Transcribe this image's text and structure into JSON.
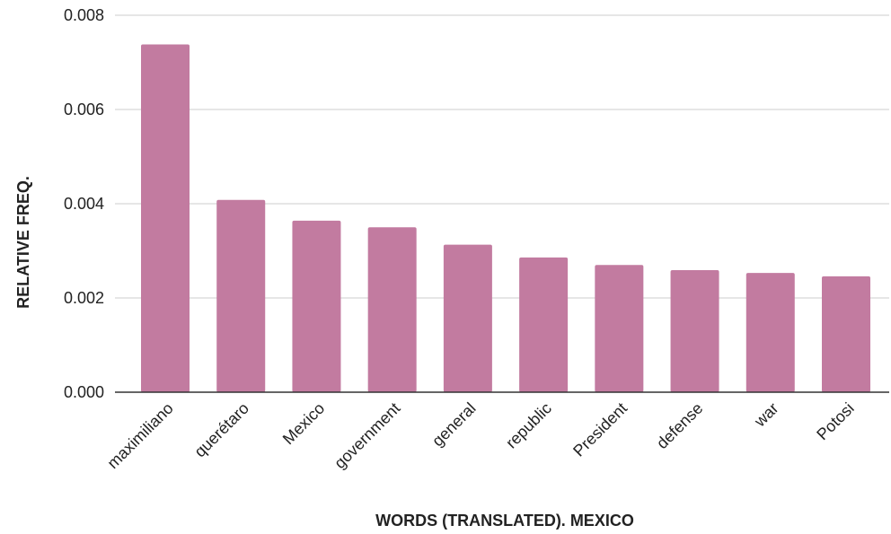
{
  "chart_data": {
    "type": "bar",
    "title": "",
    "xlabel": "WORDS (TRANSLATED). MEXICO",
    "ylabel": "RELATIVE FREQ.",
    "categories": [
      "maximiliano",
      "querétaro",
      "Mexico",
      "government",
      "general",
      "republic",
      "President",
      "defense",
      "war",
      "Potosi"
    ],
    "values": [
      0.00738,
      0.00408,
      0.00364,
      0.0035,
      0.00313,
      0.00286,
      0.0027,
      0.00259,
      0.00253,
      0.00246
    ],
    "ylim": [
      0,
      0.008
    ],
    "yticks": [
      "0.000",
      "0.002",
      "0.004",
      "0.006",
      "0.008"
    ],
    "grid": true,
    "bar_color": "#c27ba0",
    "gridline_color": "#cccccc",
    "axis_color": "#333333"
  }
}
